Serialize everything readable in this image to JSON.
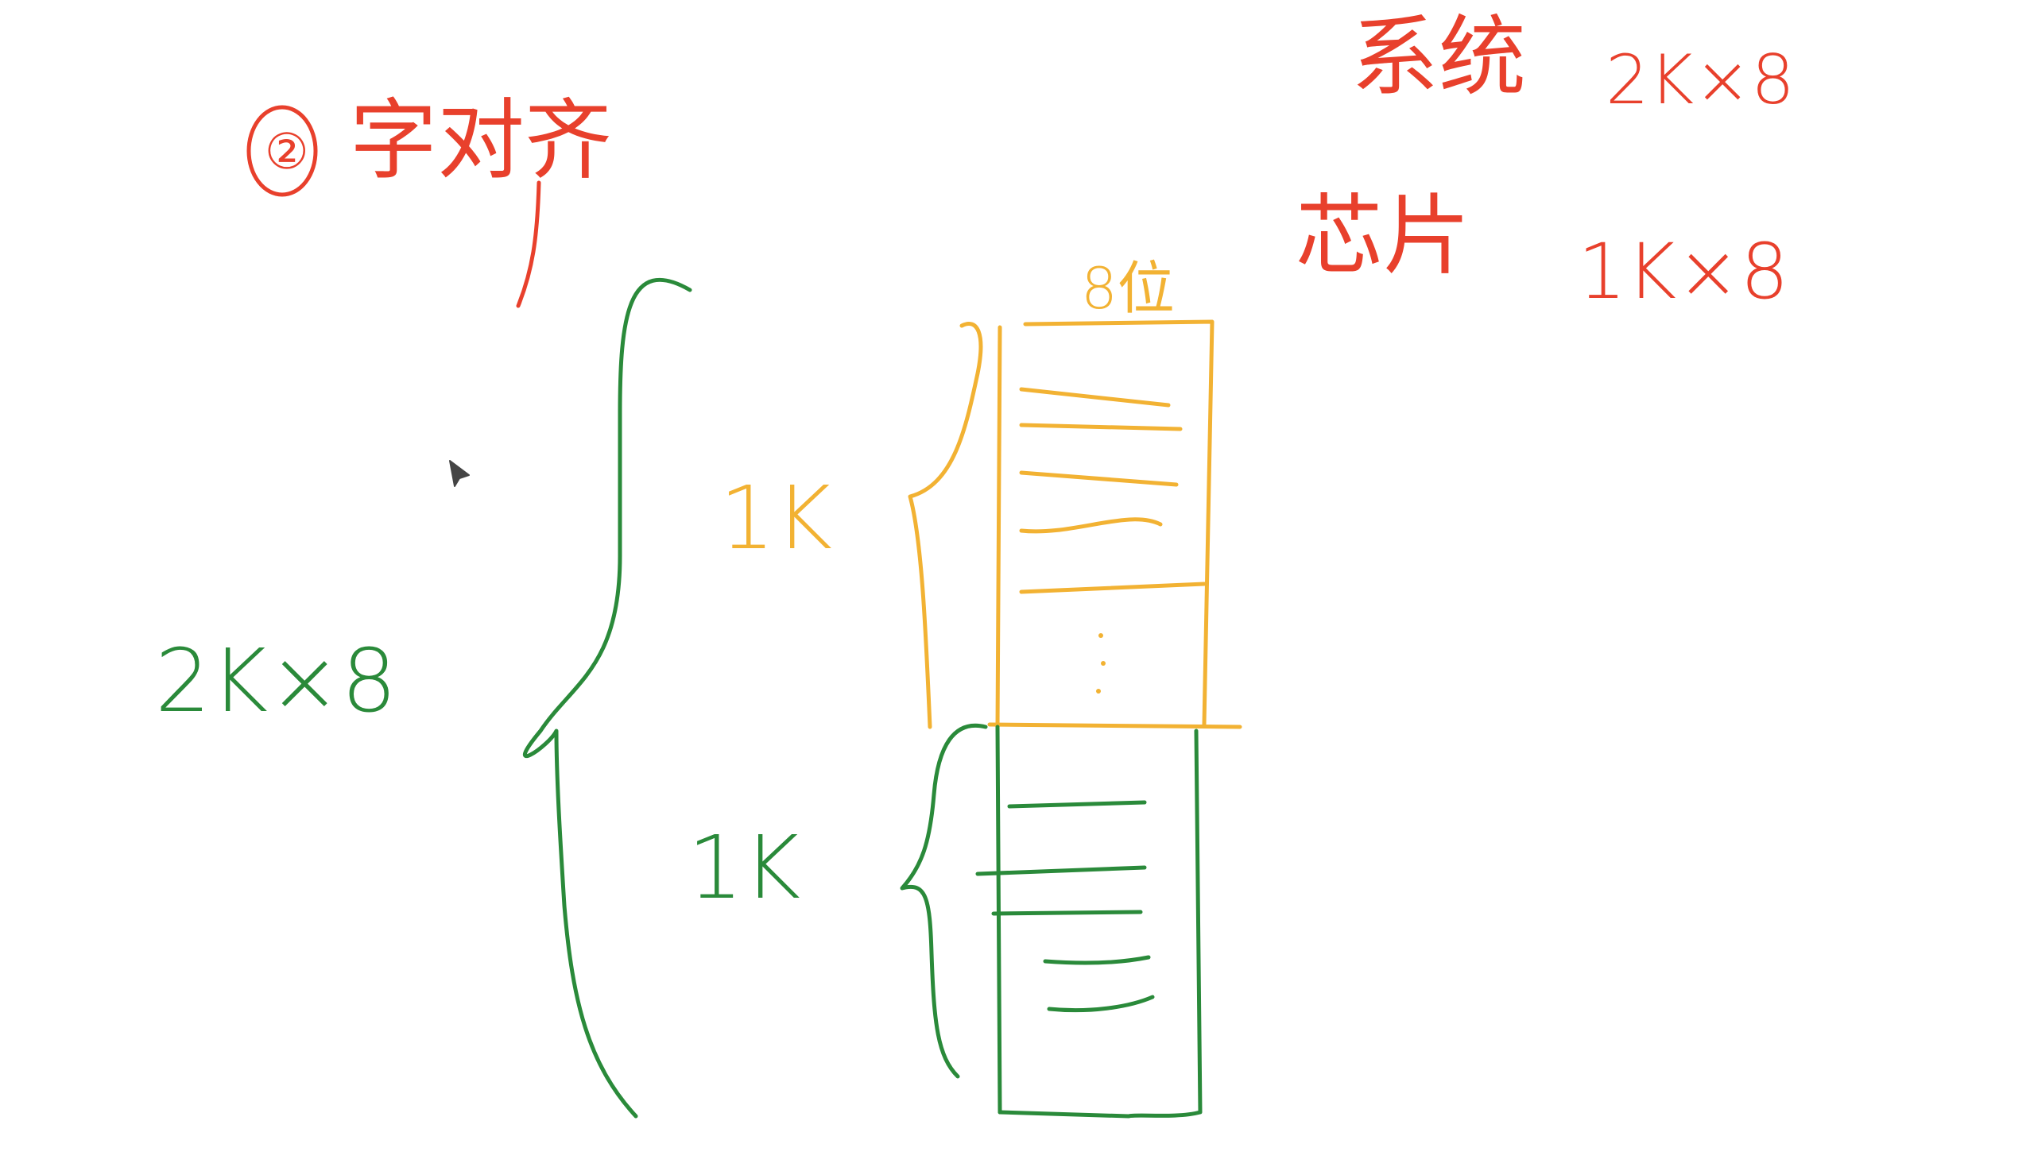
{
  "labels": {
    "section_number": "②",
    "section_title": "字对齐",
    "system_label": "系统",
    "system_value": "2K×8",
    "chip_label": "芯片",
    "chip_value": "1K×8",
    "bit_width": "8位",
    "total_capacity": "2K×8",
    "upper_block": "1K",
    "lower_block": "1K"
  },
  "colors": {
    "red": "#e8402c",
    "green": "#2a8a3a",
    "orange": "#f2b233"
  },
  "icons": {
    "cursor": "pen-cursor-icon"
  }
}
